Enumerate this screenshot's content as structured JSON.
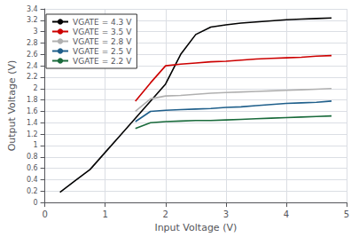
{
  "chart_data": {
    "type": "line",
    "xlabel": "Input Voltage (V)",
    "ylabel": "Output Voltage (V)",
    "xlim": [
      0,
      5
    ],
    "ylim": [
      0,
      3.4
    ],
    "xticks": [
      0,
      1,
      2,
      3,
      4,
      5
    ],
    "yticks": [
      0,
      0.2,
      0.4,
      0.6,
      0.8,
      1,
      1.2,
      1.4,
      1.6,
      1.8,
      2,
      2.2,
      2.4,
      2.6,
      2.8,
      3,
      3.2,
      3.4
    ],
    "grid": true,
    "legend": "upper left",
    "series": [
      {
        "name": "VGATE = 4.3 V",
        "color": "#000000",
        "x": [
          0.25,
          0.5,
          0.75,
          1.0,
          1.25,
          1.5,
          1.75,
          2.0,
          2.25,
          2.5,
          2.75,
          3.0,
          3.25,
          3.5,
          3.75,
          4.0,
          4.25,
          4.5,
          4.75
        ],
        "values": [
          0.18,
          0.38,
          0.58,
          0.88,
          1.18,
          1.48,
          1.78,
          2.08,
          2.6,
          2.95,
          3.08,
          3.12,
          3.15,
          3.17,
          3.19,
          3.21,
          3.22,
          3.23,
          3.24
        ]
      },
      {
        "name": "VGATE = 3.5 V",
        "color": "#cc0000",
        "x": [
          1.5,
          1.75,
          2.0,
          2.25,
          2.5,
          2.75,
          3.0,
          3.25,
          3.5,
          3.75,
          4.0,
          4.25,
          4.5,
          4.75
        ],
        "values": [
          1.78,
          2.1,
          2.4,
          2.43,
          2.45,
          2.47,
          2.48,
          2.5,
          2.52,
          2.53,
          2.54,
          2.55,
          2.57,
          2.58
        ]
      },
      {
        "name": "VGATE = 2.8 V",
        "color": "#b0b0b0",
        "x": [
          1.5,
          1.75,
          2.0,
          2.25,
          2.5,
          2.75,
          3.0,
          3.25,
          3.5,
          3.75,
          4.0,
          4.25,
          4.5,
          4.75
        ],
        "values": [
          1.6,
          1.82,
          1.87,
          1.88,
          1.9,
          1.92,
          1.93,
          1.94,
          1.95,
          1.96,
          1.97,
          1.98,
          1.99,
          2.0
        ]
      },
      {
        "name": "VGATE = 2.5 V",
        "color": "#1f5f8b",
        "x": [
          1.5,
          1.75,
          2.0,
          2.25,
          2.5,
          2.75,
          3.0,
          3.25,
          3.5,
          3.75,
          4.0,
          4.25,
          4.5,
          4.75
        ],
        "values": [
          1.42,
          1.6,
          1.62,
          1.63,
          1.64,
          1.65,
          1.67,
          1.68,
          1.7,
          1.72,
          1.74,
          1.75,
          1.76,
          1.78
        ]
      },
      {
        "name": "VGATE = 2.2 V",
        "color": "#1a6b3c",
        "x": [
          1.5,
          1.75,
          2.0,
          2.25,
          2.5,
          2.75,
          3.0,
          3.25,
          3.5,
          3.75,
          4.0,
          4.25,
          4.5,
          4.75
        ],
        "values": [
          1.3,
          1.4,
          1.42,
          1.43,
          1.44,
          1.44,
          1.45,
          1.46,
          1.47,
          1.48,
          1.49,
          1.5,
          1.51,
          1.52
        ]
      }
    ]
  }
}
